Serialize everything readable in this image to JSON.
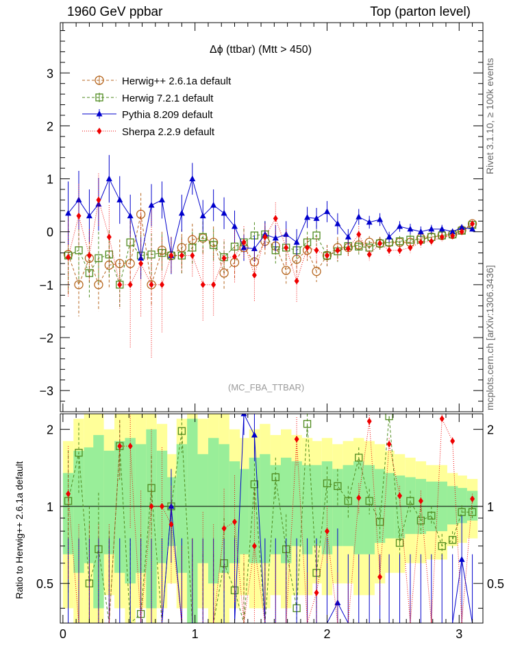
{
  "header": {
    "left": "1960 GeV ppbar",
    "right": "Top (parton level)"
  },
  "side_labels": {
    "rivet": "Rivet 3.1.10, ≥ 100k events",
    "mcplots": "mcplots.cern.ch [arXiv:1306.3436]"
  },
  "watermark": "(MC_FBA_TTBAR)",
  "ratio_ylabel": "Ratio to Herwig++ 2.6.1a default",
  "colors": {
    "herwigpp": "#b5651d",
    "herwig7": "#4e8a1e",
    "pythia": "#0000cc",
    "sherpa": "#ee0000",
    "band_green": "#99ee99",
    "band_yellow": "#ffff99"
  },
  "chart_data": {
    "type": "scatter",
    "title": "Δϕ (ttbar) (Mtt > 450)",
    "xlabel": "",
    "ylabel": "",
    "xlim": [
      -0.02,
      3.18
    ],
    "ylim": [
      -3.4,
      3.95
    ],
    "xticks": [
      "0",
      "1",
      "2",
      "3"
    ],
    "yticks": [
      "−3",
      "−2",
      "−1",
      "0",
      "1",
      "2",
      "3"
    ],
    "legend": [
      "Herwig++ 2.6.1a default",
      "Herwig 7.2.1 default",
      "Pythia 8.209 default",
      "Sherpa 2.2.9 default"
    ],
    "series": [
      {
        "name": "Herwig++ 2.6.1a default",
        "x": [
          0.04,
          0.12,
          0.2,
          0.27,
          0.35,
          0.43,
          0.51,
          0.59,
          0.67,
          0.75,
          0.82,
          0.9,
          0.98,
          1.06,
          1.14,
          1.22,
          1.3,
          1.37,
          1.45,
          1.53,
          1.61,
          1.69,
          1.77,
          1.85,
          1.92,
          2.0,
          2.08,
          2.16,
          2.24,
          2.32,
          2.4,
          2.47,
          2.55,
          2.63,
          2.71,
          2.79,
          2.87,
          2.95,
          3.02,
          3.1
        ],
        "y": [
          -0.43,
          -1.0,
          -0.5,
          -1.0,
          -0.63,
          -0.6,
          -0.6,
          0.33,
          -1.0,
          -0.35,
          -0.45,
          -0.3,
          -0.15,
          -0.12,
          -0.2,
          -0.78,
          -0.58,
          -0.3,
          -0.57,
          -0.18,
          -0.27,
          -0.73,
          -0.52,
          -0.35,
          -0.75,
          -0.45,
          -0.3,
          -0.3,
          -0.25,
          -0.2,
          -0.22,
          -0.2,
          -0.2,
          -0.2,
          -0.12,
          -0.1,
          -0.07,
          -0.05,
          0.03,
          0.15
        ],
        "err": [
          0.75,
          0.6,
          0.5,
          0.5,
          0.45,
          0.45,
          0.4,
          0.4,
          0.4,
          0.35,
          0.35,
          0.35,
          0.3,
          0.3,
          0.3,
          0.3,
          0.3,
          0.25,
          0.25,
          0.25,
          0.25,
          0.25,
          0.25,
          0.2,
          0.2,
          0.2,
          0.2,
          0.15,
          0.15,
          0.12,
          0.12,
          0.1,
          0.1,
          0.1,
          0.1,
          0.08,
          0.08,
          0.06,
          0.06,
          0.05
        ]
      },
      {
        "name": "Herwig 7.2.1 default",
        "x": [
          0.04,
          0.12,
          0.2,
          0.27,
          0.35,
          0.43,
          0.51,
          0.59,
          0.67,
          0.75,
          0.82,
          0.9,
          0.98,
          1.06,
          1.14,
          1.22,
          1.3,
          1.37,
          1.45,
          1.53,
          1.61,
          1.69,
          1.77,
          1.85,
          1.92,
          2.0,
          2.08,
          2.16,
          2.24,
          2.32,
          2.4,
          2.47,
          2.55,
          2.63,
          2.71,
          2.79,
          2.87,
          2.95,
          3.02,
          3.1
        ],
        "y": [
          -0.45,
          -0.35,
          -0.78,
          -0.5,
          -0.43,
          -1.0,
          -0.2,
          -0.45,
          -0.43,
          -0.4,
          -0.45,
          -0.45,
          -0.3,
          -0.1,
          -0.25,
          -0.48,
          -0.28,
          -0.2,
          -0.07,
          -0.05,
          -0.35,
          -0.3,
          -0.35,
          -0.2,
          -0.07,
          -0.45,
          -0.37,
          -0.27,
          -0.28,
          -0.3,
          -0.22,
          -0.2,
          -0.18,
          -0.15,
          -0.15,
          -0.1,
          -0.07,
          -0.05,
          0.02,
          0.13
        ],
        "err": [
          0.7,
          0.6,
          0.5,
          0.5,
          0.45,
          0.45,
          0.4,
          0.4,
          0.4,
          0.35,
          0.35,
          0.35,
          0.3,
          0.3,
          0.3,
          0.3,
          0.3,
          0.25,
          0.25,
          0.25,
          0.25,
          0.25,
          0.25,
          0.2,
          0.2,
          0.2,
          0.2,
          0.15,
          0.15,
          0.12,
          0.12,
          0.1,
          0.1,
          0.1,
          0.1,
          0.08,
          0.08,
          0.06,
          0.06,
          0.05
        ]
      },
      {
        "name": "Pythia 8.209 default",
        "x": [
          0.04,
          0.12,
          0.2,
          0.27,
          0.35,
          0.43,
          0.51,
          0.59,
          0.67,
          0.75,
          0.82,
          0.9,
          0.98,
          1.06,
          1.14,
          1.22,
          1.3,
          1.37,
          1.45,
          1.53,
          1.61,
          1.69,
          1.77,
          1.85,
          1.92,
          2.0,
          2.08,
          2.16,
          2.24,
          2.32,
          2.4,
          2.47,
          2.55,
          2.63,
          2.71,
          2.79,
          2.87,
          2.95,
          3.02,
          3.1
        ],
        "y": [
          0.35,
          0.6,
          0.3,
          0.52,
          1.0,
          0.6,
          0.3,
          -0.5,
          0.5,
          0.6,
          -0.45,
          0.35,
          1.0,
          0.3,
          0.5,
          0.35,
          0.1,
          -0.3,
          -0.32,
          -0.05,
          -0.12,
          -0.05,
          -0.2,
          0.27,
          0.25,
          0.38,
          0.15,
          -0.1,
          0.28,
          0.18,
          0.23,
          -0.1,
          0.1,
          0.05,
          0.0,
          0.05,
          0.05,
          0.0,
          0.08,
          0.05
        ],
        "err": [
          0.6,
          0.55,
          0.5,
          0.5,
          0.45,
          0.45,
          0.4,
          0.4,
          0.4,
          0.35,
          0.35,
          0.35,
          0.3,
          0.3,
          0.3,
          0.3,
          0.3,
          0.25,
          0.25,
          0.25,
          0.25,
          0.25,
          0.25,
          0.2,
          0.2,
          0.2,
          0.2,
          0.15,
          0.15,
          0.12,
          0.12,
          0.1,
          0.1,
          0.1,
          0.1,
          0.08,
          0.08,
          0.06,
          0.06,
          0.05
        ]
      },
      {
        "name": "Sherpa 2.2.9 default",
        "x": [
          0.04,
          0.12,
          0.2,
          0.27,
          0.35,
          0.43,
          0.51,
          0.59,
          0.67,
          0.75,
          0.82,
          0.9,
          0.98,
          1.06,
          1.14,
          1.22,
          1.3,
          1.37,
          1.45,
          1.53,
          1.61,
          1.69,
          1.77,
          1.85,
          1.92,
          2.0,
          2.08,
          2.16,
          2.24,
          2.32,
          2.4,
          2.47,
          2.55,
          2.63,
          2.71,
          2.79,
          2.87,
          2.95,
          3.02,
          3.1
        ],
        "y": [
          -0.48,
          0.3,
          -0.45,
          0.6,
          -0.1,
          -1.0,
          -1.0,
          -0.6,
          -1.0,
          -1.0,
          -0.45,
          -0.45,
          -0.45,
          -1.0,
          -1.0,
          -0.5,
          -0.47,
          -0.2,
          -0.82,
          -0.1,
          0.25,
          -0.3,
          -0.93,
          -0.3,
          -0.35,
          -0.45,
          -0.35,
          -0.32,
          -0.05,
          -0.43,
          -0.22,
          -0.35,
          -0.35,
          -0.3,
          -0.2,
          -0.18,
          -0.1,
          -0.08,
          0.0,
          0.15
        ],
        "err": [
          0.75,
          0.6,
          0.5,
          0.5,
          0.6,
          0.45,
          1.2,
          1.0,
          1.4,
          0.9,
          0.35,
          0.35,
          0.4,
          0.7,
          0.6,
          0.35,
          0.5,
          0.3,
          0.5,
          0.25,
          0.3,
          0.35,
          0.4,
          0.2,
          0.25,
          0.2,
          0.2,
          0.15,
          0.15,
          0.12,
          0.12,
          0.1,
          0.1,
          0.1,
          0.1,
          0.08,
          0.08,
          0.06,
          0.06,
          0.05
        ]
      }
    ],
    "ratio": {
      "ylabel": "Ratio to Herwig++ 2.6.1a default",
      "ylim": [
        0.35,
        2.3
      ],
      "yticks": [
        "0.5",
        "1",
        "2"
      ],
      "reference_line": 1,
      "band_green": [
        [
          0.65,
          1.35
        ],
        [
          0.55,
          1.65
        ],
        [
          0.6,
          1.7
        ],
        [
          0.4,
          1.9
        ],
        [
          0.65,
          1.65
        ],
        [
          0.55,
          1.8
        ],
        [
          0.5,
          1.85
        ],
        [
          0.55,
          1.75
        ],
        [
          0.4,
          2.0
        ],
        [
          0.6,
          1.65
        ],
        [
          0.7,
          1.3
        ],
        [
          0.55,
          1.75
        ],
        [
          0.35,
          2.2
        ],
        [
          0.6,
          1.6
        ],
        [
          0.5,
          1.85
        ],
        [
          0.55,
          1.75
        ],
        [
          0.6,
          1.5
        ],
        [
          0.65,
          1.4
        ],
        [
          0.6,
          1.55
        ],
        [
          0.6,
          1.6
        ],
        [
          0.65,
          1.45
        ],
        [
          0.6,
          1.55
        ],
        [
          0.7,
          1.5
        ],
        [
          0.65,
          1.45
        ],
        [
          0.7,
          1.45
        ],
        [
          0.65,
          1.5
        ],
        [
          0.7,
          1.4
        ],
        [
          0.7,
          1.45
        ],
        [
          0.65,
          1.5
        ],
        [
          0.65,
          1.45
        ],
        [
          0.72,
          1.4
        ],
        [
          0.75,
          1.35
        ],
        [
          0.75,
          1.32
        ],
        [
          0.78,
          1.3
        ],
        [
          0.78,
          1.28
        ],
        [
          0.8,
          1.25
        ],
        [
          0.8,
          1.25
        ],
        [
          0.85,
          1.2
        ],
        [
          0.86,
          1.18
        ],
        [
          0.88,
          1.15
        ]
      ],
      "band_yellow": [
        [
          0.4,
          1.8
        ],
        [
          0.35,
          2.2
        ],
        [
          0.35,
          2.3
        ],
        [
          0.35,
          2.3
        ],
        [
          0.45,
          2.0
        ],
        [
          0.4,
          2.3
        ],
        [
          0.35,
          2.3
        ],
        [
          0.4,
          2.3
        ],
        [
          0.35,
          2.3
        ],
        [
          0.4,
          2.1
        ],
        [
          0.5,
          1.6
        ],
        [
          0.4,
          2.2
        ],
        [
          0.35,
          2.3
        ],
        [
          0.4,
          2.2
        ],
        [
          0.35,
          2.3
        ],
        [
          0.35,
          2.3
        ],
        [
          0.4,
          2.0
        ],
        [
          0.45,
          1.85
        ],
        [
          0.4,
          2.0
        ],
        [
          0.4,
          2.1
        ],
        [
          0.45,
          1.9
        ],
        [
          0.4,
          2.0
        ],
        [
          0.45,
          1.9
        ],
        [
          0.45,
          1.85
        ],
        [
          0.5,
          1.8
        ],
        [
          0.45,
          1.85
        ],
        [
          0.5,
          1.75
        ],
        [
          0.5,
          1.8
        ],
        [
          0.45,
          1.85
        ],
        [
          0.45,
          1.8
        ],
        [
          0.5,
          1.75
        ],
        [
          0.55,
          1.65
        ],
        [
          0.55,
          1.6
        ],
        [
          0.6,
          1.55
        ],
        [
          0.6,
          1.5
        ],
        [
          0.62,
          1.45
        ],
        [
          0.62,
          1.45
        ],
        [
          0.7,
          1.35
        ],
        [
          0.72,
          1.32
        ],
        [
          0.75,
          1.28
        ]
      ],
      "series": [
        {
          "name": "Herwig 7.2.1 default",
          "y": [
            1.05,
            1.62,
            0.5,
            0.68,
            0.35,
            1.72,
            0.35,
            0.38,
            1.18,
            0.35,
            1.0,
            1.97,
            0.35,
            0.35,
            0.35,
            0.6,
            0.47,
            0.35,
            1.22,
            0.35,
            1.3,
            0.68,
            0.4,
            2.1,
            0.55,
            1.23,
            1.2,
            1.05,
            1.55,
            1.05,
            0.87,
            2.25,
            0.72,
            1.05,
            0.88,
            0.92,
            0.7,
            0.74,
            0.95,
            0.95
          ],
          "err": [
            0.6,
            0.5,
            0.5,
            0.45,
            0.45,
            0.45,
            0.4,
            0.4,
            0.4,
            0.35,
            0.35,
            0.35,
            0.3,
            0.3,
            0.3,
            0.3,
            0.3,
            0.25,
            0.25,
            0.25,
            0.25,
            0.25,
            0.25,
            0.2,
            0.2,
            0.2,
            0.2,
            0.15,
            0.15,
            0.12,
            0.12,
            0.1,
            0.1,
            0.1,
            0.1,
            0.08,
            0.08,
            0.06,
            0.06,
            0.05
          ]
        },
        {
          "name": "Pythia 8.209 default",
          "y": [
            0.35,
            0.35,
            0.35,
            0.35,
            0.35,
            0.35,
            0.35,
            0.35,
            0.35,
            0.35,
            1.0,
            0.35,
            0.35,
            0.35,
            0.35,
            0.35,
            0.35,
            2.3,
            1.9,
            0.35,
            0.35,
            0.35,
            0.35,
            0.35,
            0.35,
            0.35,
            0.42,
            0.35,
            0.35,
            0.35,
            0.35,
            0.35,
            0.35,
            0.35,
            0.35,
            0.35,
            0.35,
            0.35,
            0.62,
            0.35
          ],
          "err": [
            0.4,
            0.4,
            0.4,
            0.4,
            0.4,
            0.4,
            0.4,
            0.4,
            0.4,
            0.4,
            0.4,
            0.4,
            0.4,
            0.4,
            0.4,
            0.4,
            0.4,
            0.4,
            0.4,
            0.4,
            0.4,
            0.4,
            0.4,
            0.4,
            0.4,
            0.4,
            0.4,
            0.3,
            0.3,
            0.3,
            0.3,
            0.3,
            0.3,
            0.3,
            0.3,
            0.3,
            0.3,
            0.3,
            0.3,
            0.3
          ]
        },
        {
          "name": "Sherpa 2.2.9 default",
          "y": [
            1.12,
            0.35,
            0.35,
            0.35,
            0.35,
            1.72,
            1.72,
            0.35,
            1.0,
            1.0,
            0.85,
            0.35,
            0.35,
            0.35,
            0.35,
            0.82,
            0.87,
            0.35,
            0.7,
            0.35,
            0.35,
            0.35,
            1.83,
            0.35,
            0.46,
            0.8,
            0.35,
            0.35,
            1.08,
            2.15,
            0.53,
            1.75,
            1.1,
            0.35,
            1.05,
            0.35,
            2.2,
            1.8,
            0.35,
            1.07
          ],
          "err": [
            0.6,
            0.5,
            0.5,
            0.5,
            0.5,
            0.45,
            0.9,
            0.8,
            1.0,
            0.7,
            0.35,
            0.35,
            0.4,
            0.6,
            0.5,
            0.35,
            0.45,
            0.3,
            0.45,
            0.25,
            0.3,
            0.35,
            0.4,
            0.2,
            0.25,
            0.2,
            0.2,
            0.15,
            0.15,
            0.12,
            0.12,
            0.1,
            0.1,
            0.1,
            0.1,
            0.08,
            0.08,
            0.06,
            0.06,
            0.05
          ]
        }
      ]
    }
  }
}
